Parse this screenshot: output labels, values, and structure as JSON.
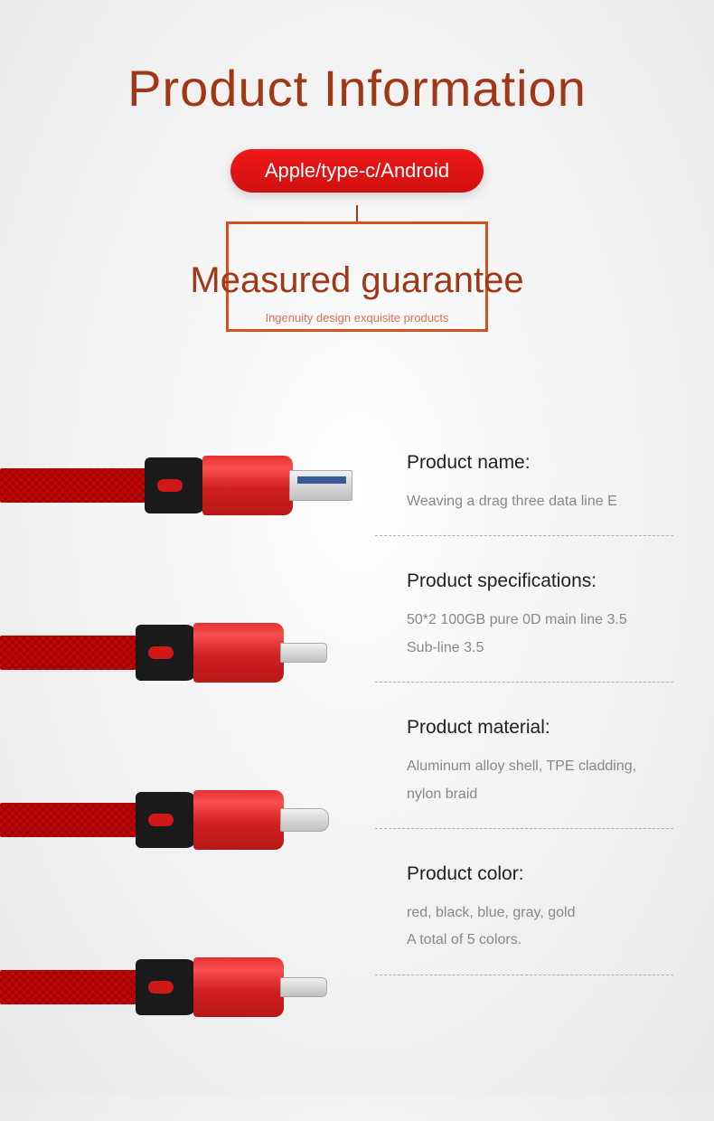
{
  "header": {
    "title": "Product Information",
    "badge": "Apple/type-c/Android",
    "subtitle": "Measured guarantee",
    "tagline": "Ingenuity design exquisite products",
    "title_color": "#a03818",
    "badge_bg": "#e01818",
    "frame_border_color": "#d8501a"
  },
  "cables": {
    "braid_color": "#d01818",
    "metal_color": "#e02828",
    "collar_color": "#1a1a1a",
    "connectors": [
      "usb-a",
      "micro-usb",
      "type-c",
      "lightning"
    ]
  },
  "specs": [
    {
      "label": "Product name:",
      "value": "Weaving a drag three data line E"
    },
    {
      "label": "Product specifications:",
      "value": "50*2 100GB pure 0D main line 3.5\nSub-line 3.5"
    },
    {
      "label": "Product material:",
      "value": "Aluminum alloy shell, TPE cladding,\nnylon braid"
    },
    {
      "label": "Product color:",
      "value": "red, black, blue, gray, gold\nA total of 5 colors."
    }
  ],
  "colors": {
    "background": "#f0f0f0",
    "text_primary": "#222222",
    "text_secondary": "#888888",
    "divider": "#b0b0b0"
  }
}
